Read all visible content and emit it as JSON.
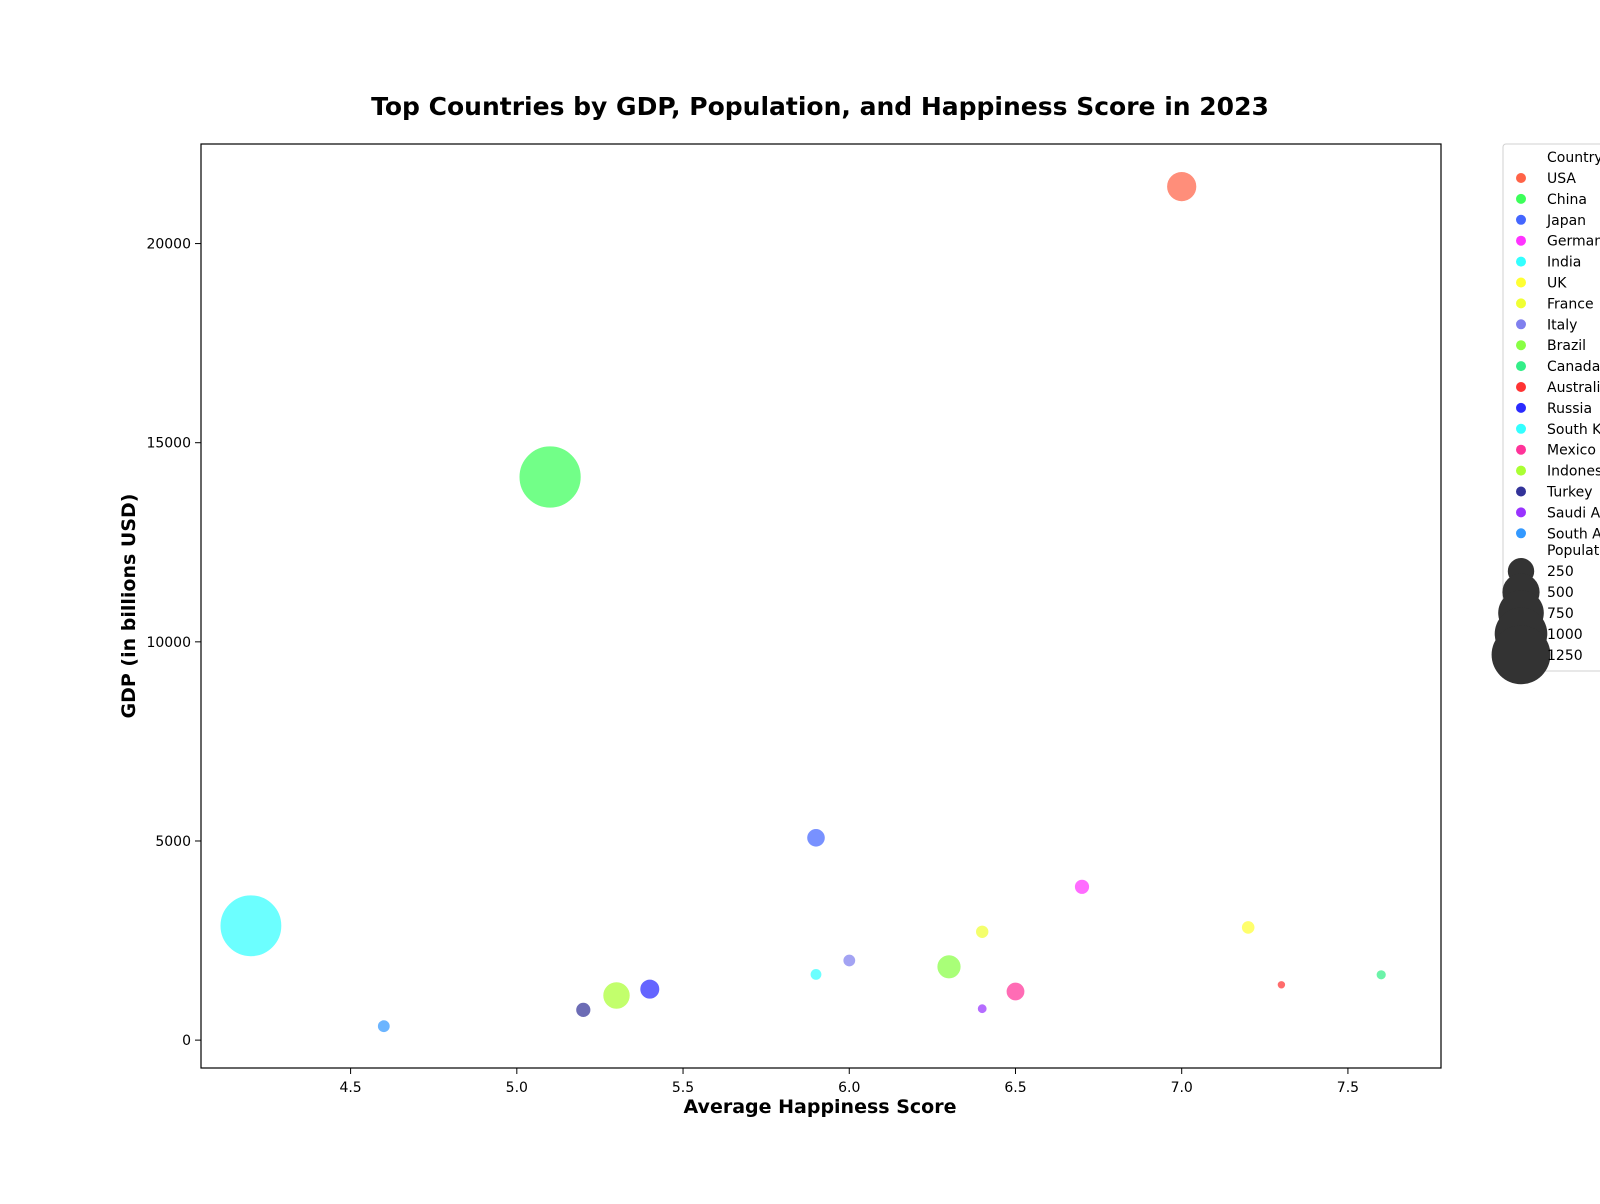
{
  "chart_data": {
    "type": "scatter",
    "title": "Top Countries by GDP, Population, and Happiness Score in 2023",
    "xlabel": "Average Happiness Score",
    "ylabel": "GDP (in billions USD)",
    "xlim": [
      4.05,
      7.78
    ],
    "ylim": [
      -700,
      22500
    ],
    "xticks": [
      4.5,
      5.0,
      5.5,
      6.0,
      6.5,
      7.0,
      7.5
    ],
    "xtick_labels": [
      "4.5",
      "5.0",
      "5.5",
      "6.0",
      "6.5",
      "7.0",
      "7.5"
    ],
    "yticks": [
      0,
      5000,
      10000,
      15000,
      20000
    ],
    "ytick_labels": [
      "0",
      "5000",
      "10000",
      "15000",
      "20000"
    ],
    "grid": false,
    "legend": {
      "placement": "outside-right",
      "hue_title": "Country",
      "size_title": "Populati",
      "size_entries": [
        {
          "label": "250",
          "value": 250
        },
        {
          "label": "500",
          "value": 500
        },
        {
          "label": "750",
          "value": 750
        },
        {
          "label": "1000",
          "value": 1000
        },
        {
          "label": "1250",
          "value": 1250
        }
      ]
    },
    "series": [
      {
        "name": "USA",
        "legend_label": "USA",
        "color": "#ff6347",
        "x": 7.0,
        "y": 21430,
        "size": 331
      },
      {
        "name": "China",
        "legend_label": "China",
        "color": "#3cff5a",
        "x": 5.1,
        "y": 14140,
        "size": 1400
      },
      {
        "name": "Japan",
        "legend_label": "Japan",
        "color": "#4466ff",
        "x": 5.9,
        "y": 5080,
        "size": 126
      },
      {
        "name": "Germany",
        "legend_label": "German",
        "color": "#ff33ff",
        "x": 6.7,
        "y": 3850,
        "size": 83
      },
      {
        "name": "India",
        "legend_label": "India",
        "color": "#33ffff",
        "x": 4.2,
        "y": 2870,
        "size": 1380
      },
      {
        "name": "UK",
        "legend_label": "UK",
        "color": "#ffff33",
        "x": 7.2,
        "y": 2830,
        "size": 67
      },
      {
        "name": "France",
        "legend_label": "France",
        "color": "#f0ff33",
        "x": 6.4,
        "y": 2720,
        "size": 65
      },
      {
        "name": "Italy",
        "legend_label": "Italy",
        "color": "#8080ee",
        "x": 6.0,
        "y": 2000,
        "size": 60
      },
      {
        "name": "Brazil",
        "legend_label": "Brazil",
        "color": "#88ff44",
        "x": 6.3,
        "y": 1840,
        "size": 212
      },
      {
        "name": "Canada",
        "legend_label": "Canada",
        "color": "#33ee88",
        "x": 7.6,
        "y": 1640,
        "size": 38
      },
      {
        "name": "Australia",
        "legend_label": "Australi",
        "color": "#ff3333",
        "x": 7.3,
        "y": 1390,
        "size": 25
      },
      {
        "name": "Russia",
        "legend_label": "Russia",
        "color": "#2a2aff",
        "x": 5.4,
        "y": 1280,
        "size": 144
      },
      {
        "name": "South Korea",
        "legend_label": "South K",
        "color": "#33ffff",
        "x": 5.9,
        "y": 1650,
        "size": 51
      },
      {
        "name": "Mexico",
        "legend_label": "Mexico",
        "color": "#ff3399",
        "x": 6.5,
        "y": 1220,
        "size": 128
      },
      {
        "name": "Indonesia",
        "legend_label": "Indones",
        "color": "#aaff33",
        "x": 5.3,
        "y": 1120,
        "size": 273
      },
      {
        "name": "Turkey",
        "legend_label": "Turkey",
        "color": "#333399",
        "x": 5.2,
        "y": 760,
        "size": 84
      },
      {
        "name": "Saudi Arabia",
        "legend_label": "Saudi A",
        "color": "#9933ff",
        "x": 6.4,
        "y": 790,
        "size": 35
      },
      {
        "name": "South Africa",
        "legend_label": "South A",
        "color": "#3399ff",
        "x": 4.6,
        "y": 350,
        "size": 59
      }
    ]
  }
}
